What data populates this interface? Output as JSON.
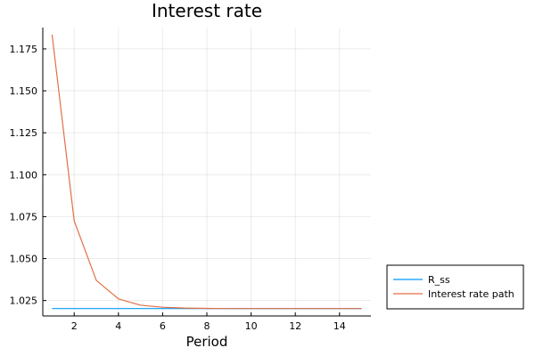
{
  "chart_data": {
    "type": "line",
    "title": "Interest rate",
    "xlabel": "Period",
    "ylabel": "",
    "xlim": [
      0.58,
      15.42
    ],
    "ylim": [
      1.0158,
      1.1877
    ],
    "grid": true,
    "legend_position": "bottom-right (outside plot)",
    "x_ticks": [
      2,
      4,
      6,
      8,
      10,
      12,
      14
    ],
    "x_tick_labels": [
      "2",
      "4",
      "6",
      "8",
      "10",
      "12",
      "14"
    ],
    "y_ticks": [
      1.025,
      1.05,
      1.075,
      1.1,
      1.125,
      1.15,
      1.175
    ],
    "y_tick_labels": [
      "1.025",
      "1.050",
      "1.075",
      "1.100",
      "1.125",
      "1.150",
      "1.175"
    ],
    "x": [
      1,
      2,
      3,
      4,
      5,
      6,
      7,
      8,
      9,
      10,
      11,
      12,
      13,
      14,
      15
    ],
    "series": [
      {
        "name": "R_ss",
        "color": "#009af9",
        "values": [
          1.0202,
          1.0202,
          1.0202,
          1.0202,
          1.0202,
          1.0202,
          1.0202,
          1.0202,
          1.0202,
          1.0202,
          1.0202,
          1.0202,
          1.0202,
          1.0202,
          1.0202
        ]
      },
      {
        "name": "Interest rate path",
        "color": "#e26f46",
        "values": [
          1.1835,
          1.0725,
          1.037,
          1.026,
          1.0222,
          1.021,
          1.0205,
          1.0203,
          1.0202,
          1.0202,
          1.0202,
          1.0202,
          1.0202,
          1.0202,
          1.0202
        ]
      }
    ]
  }
}
